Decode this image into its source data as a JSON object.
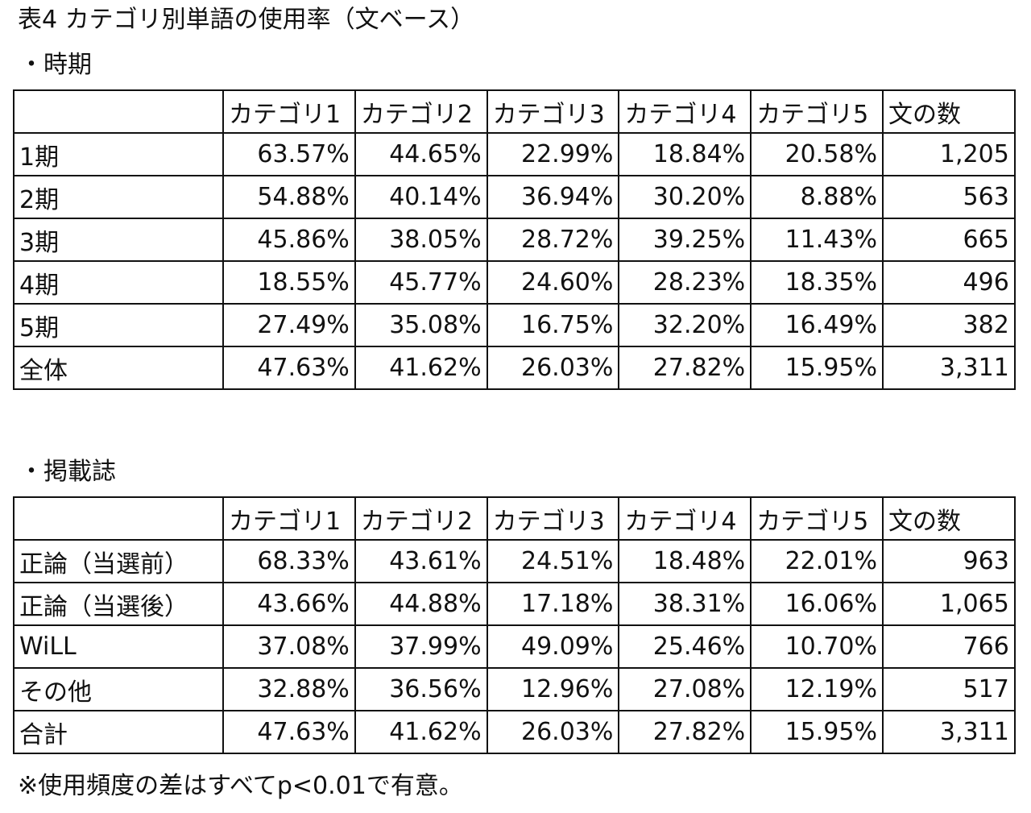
{
  "title": "表4 カテゴリ別単語の使用率（文ベース）",
  "sections": [
    {
      "label": "・時期",
      "headers": [
        "",
        "カテゴリ1",
        "カテゴリ2",
        "カテゴリ3",
        "カテゴリ4",
        "カテゴリ5",
        "文の数"
      ],
      "rows": [
        [
          "1期",
          "63.57%",
          "44.65%",
          "22.99%",
          "18.84%",
          "20.58%",
          "1,205"
        ],
        [
          "2期",
          "54.88%",
          "40.14%",
          "36.94%",
          "30.20%",
          "8.88%",
          "563"
        ],
        [
          "3期",
          "45.86%",
          "38.05%",
          "28.72%",
          "39.25%",
          "11.43%",
          "665"
        ],
        [
          "4期",
          "18.55%",
          "45.77%",
          "24.60%",
          "28.23%",
          "18.35%",
          "496"
        ],
        [
          "5期",
          "27.49%",
          "35.08%",
          "16.75%",
          "32.20%",
          "16.49%",
          "382"
        ],
        [
          "全体",
          "47.63%",
          "41.62%",
          "26.03%",
          "27.82%",
          "15.95%",
          "3,311"
        ]
      ]
    },
    {
      "label": "・掲載誌",
      "headers": [
        "",
        "カテゴリ1",
        "カテゴリ2",
        "カテゴリ3",
        "カテゴリ4",
        "カテゴリ5",
        "文の数"
      ],
      "rows": [
        [
          "正論（当選前）",
          "68.33%",
          "43.61%",
          "24.51%",
          "18.48%",
          "22.01%",
          "963"
        ],
        [
          "正論（当選後）",
          "43.66%",
          "44.88%",
          "17.18%",
          "38.31%",
          "16.06%",
          "1,065"
        ],
        [
          "WiLL",
          "37.08%",
          "37.99%",
          "49.09%",
          "25.46%",
          "10.70%",
          "766"
        ],
        [
          "その他",
          "32.88%",
          "36.56%",
          "12.96%",
          "27.08%",
          "12.19%",
          "517"
        ],
        [
          "合計",
          "47.63%",
          "41.62%",
          "26.03%",
          "27.82%",
          "15.95%",
          "3,311"
        ]
      ]
    }
  ],
  "note": "※使用頻度の差はすべてp<0.01で有意。"
}
